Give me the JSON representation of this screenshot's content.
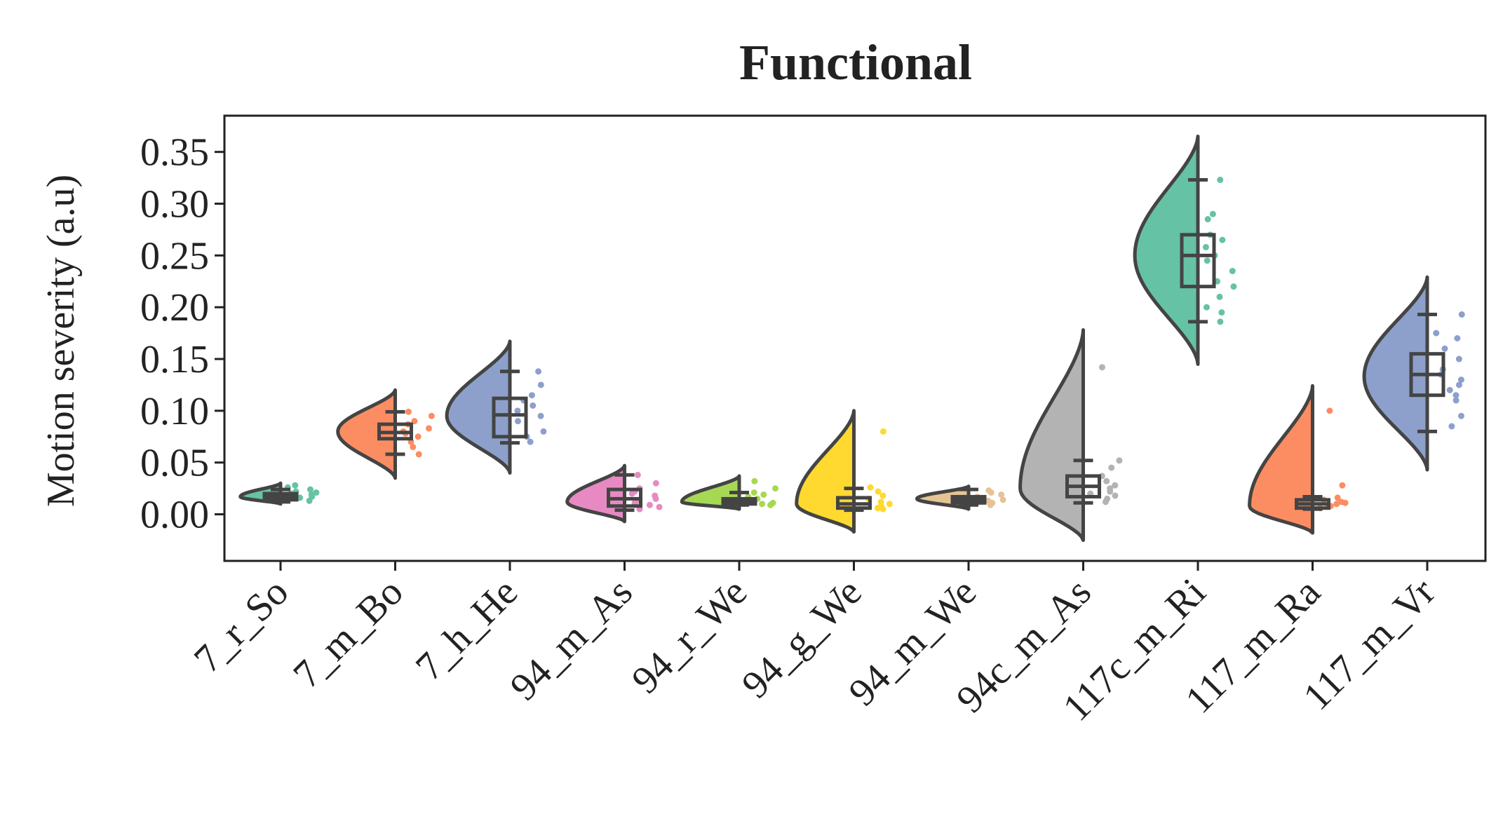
{
  "chart_data": {
    "type": "raincloud",
    "title": "Functional",
    "ylabel": "Motion severity (a.u)",
    "xlabel": "",
    "ylim": [
      -0.045,
      0.385
    ],
    "yticks": [
      "0.00",
      "0.05",
      "0.10",
      "0.15",
      "0.20",
      "0.25",
      "0.30",
      "0.35"
    ],
    "grid": false,
    "colors": {
      "teal": "#66c2a5",
      "orange": "#fc8d62",
      "blue": "#8da0cb",
      "pink": "#e78ac3",
      "green": "#a6d854",
      "yellow": "#ffd92f",
      "tan": "#e5c494",
      "gray": "#b3b3b3",
      "outline": "#444444"
    },
    "categories": [
      {
        "label": "7_r_So",
        "color": "#66c2a5",
        "box": {
          "whisker_low": 0.012,
          "q1": 0.014,
          "median": 0.017,
          "q3": 0.02,
          "whisker_high": 0.024
        },
        "violin": {
          "lo": 0.01,
          "hi": 0.03,
          "peak": 0.017,
          "max_width": 0.35
        },
        "points": [
          0.013,
          0.015,
          0.016,
          0.017,
          0.018,
          0.019,
          0.02,
          0.021,
          0.022,
          0.024,
          0.026,
          0.028
        ]
      },
      {
        "label": "7_m_Bo",
        "color": "#fc8d62",
        "box": {
          "whisker_low": 0.058,
          "q1": 0.073,
          "median": 0.079,
          "q3": 0.087,
          "whisker_high": 0.099
        },
        "violin": {
          "lo": 0.035,
          "hi": 0.12,
          "peak": 0.08,
          "max_width": 0.5
        },
        "points": [
          0.058,
          0.065,
          0.07,
          0.075,
          0.078,
          0.08,
          0.083,
          0.087,
          0.09,
          0.095,
          0.099
        ]
      },
      {
        "label": "7_h_He",
        "color": "#8da0cb",
        "box": {
          "whisker_low": 0.069,
          "q1": 0.075,
          "median": 0.096,
          "q3": 0.112,
          "whisker_high": 0.138
        },
        "violin": {
          "lo": 0.04,
          "hi": 0.167,
          "peak": 0.095,
          "max_width": 0.55
        },
        "points": [
          0.07,
          0.075,
          0.08,
          0.09,
          0.095,
          0.1,
          0.105,
          0.11,
          0.115,
          0.125,
          0.138
        ]
      },
      {
        "label": "94_m_As",
        "color": "#e78ac3",
        "box": {
          "whisker_low": 0.004,
          "q1": 0.008,
          "median": 0.015,
          "q3": 0.024,
          "whisker_high": 0.038
        },
        "violin": {
          "lo": -0.007,
          "hi": 0.047,
          "peak": 0.012,
          "max_width": 0.5
        },
        "points": [
          0.005,
          0.007,
          0.009,
          0.011,
          0.013,
          0.015,
          0.018,
          0.02,
          0.022,
          0.025,
          0.03,
          0.038
        ]
      },
      {
        "label": "94_r_We",
        "color": "#a6d854",
        "box": {
          "whisker_low": 0.009,
          "q1": 0.01,
          "median": 0.012,
          "q3": 0.015,
          "whisker_high": 0.021
        },
        "violin": {
          "lo": 0.005,
          "hi": 0.037,
          "peak": 0.012,
          "max_width": 0.5
        },
        "points": [
          0.009,
          0.01,
          0.011,
          0.012,
          0.013,
          0.014,
          0.015,
          0.017,
          0.019,
          0.021,
          0.025,
          0.032
        ]
      },
      {
        "label": "94_g_We",
        "color": "#ffd92f",
        "box": {
          "whisker_low": 0.004,
          "q1": 0.006,
          "median": 0.01,
          "q3": 0.016,
          "whisker_high": 0.025
        },
        "violin": {
          "lo": -0.017,
          "hi": 0.1,
          "peak": 0.01,
          "max_width": 0.5
        },
        "points": [
          0.005,
          0.006,
          0.008,
          0.01,
          0.012,
          0.015,
          0.018,
          0.022,
          0.026,
          0.08
        ]
      },
      {
        "label": "94_m_We",
        "color": "#e5c494",
        "box": {
          "whisker_low": 0.009,
          "q1": 0.011,
          "median": 0.014,
          "q3": 0.017,
          "whisker_high": 0.024
        },
        "violin": {
          "lo": 0.005,
          "hi": 0.027,
          "peak": 0.015,
          "max_width": 0.45
        },
        "points": [
          0.009,
          0.011,
          0.012,
          0.013,
          0.014,
          0.015,
          0.017,
          0.019,
          0.021,
          0.023
        ]
      },
      {
        "label": "94c_m_As",
        "color": "#b3b3b3",
        "box": {
          "whisker_low": 0.011,
          "q1": 0.017,
          "median": 0.027,
          "q3": 0.037,
          "whisker_high": 0.052
        },
        "violin": {
          "lo": -0.025,
          "hi": 0.178,
          "peak": 0.025,
          "max_width": 0.55
        },
        "points": [
          0.012,
          0.015,
          0.018,
          0.02,
          0.022,
          0.025,
          0.028,
          0.032,
          0.037,
          0.045,
          0.052,
          0.142
        ]
      },
      {
        "label": "117c_m_Ri",
        "color": "#66c2a5",
        "box": {
          "whisker_low": 0.186,
          "q1": 0.22,
          "median": 0.25,
          "q3": 0.27,
          "whisker_high": 0.323
        },
        "violin": {
          "lo": 0.145,
          "hi": 0.365,
          "peak": 0.25,
          "max_width": 0.55
        },
        "points": [
          0.186,
          0.195,
          0.2,
          0.21,
          0.22,
          0.225,
          0.235,
          0.245,
          0.25,
          0.258,
          0.265,
          0.27,
          0.285,
          0.29,
          0.323
        ]
      },
      {
        "label": "117_m_Ra",
        "color": "#fc8d62",
        "box": {
          "whisker_low": 0.005,
          "q1": 0.006,
          "median": 0.01,
          "q3": 0.014,
          "whisker_high": 0.017
        },
        "violin": {
          "lo": -0.018,
          "hi": 0.124,
          "peak": 0.008,
          "max_width": 0.55
        },
        "points": [
          0.006,
          0.008,
          0.009,
          0.01,
          0.011,
          0.012,
          0.014,
          0.016,
          0.028,
          0.1
        ]
      },
      {
        "label": "117_m_Vr",
        "color": "#8da0cb",
        "box": {
          "whisker_low": 0.08,
          "q1": 0.115,
          "median": 0.135,
          "q3": 0.155,
          "whisker_high": 0.193
        },
        "violin": {
          "lo": 0.043,
          "hi": 0.229,
          "peak": 0.133,
          "max_width": 0.55
        },
        "points": [
          0.085,
          0.095,
          0.11,
          0.115,
          0.12,
          0.125,
          0.13,
          0.135,
          0.14,
          0.15,
          0.16,
          0.17,
          0.175,
          0.193
        ]
      }
    ]
  }
}
